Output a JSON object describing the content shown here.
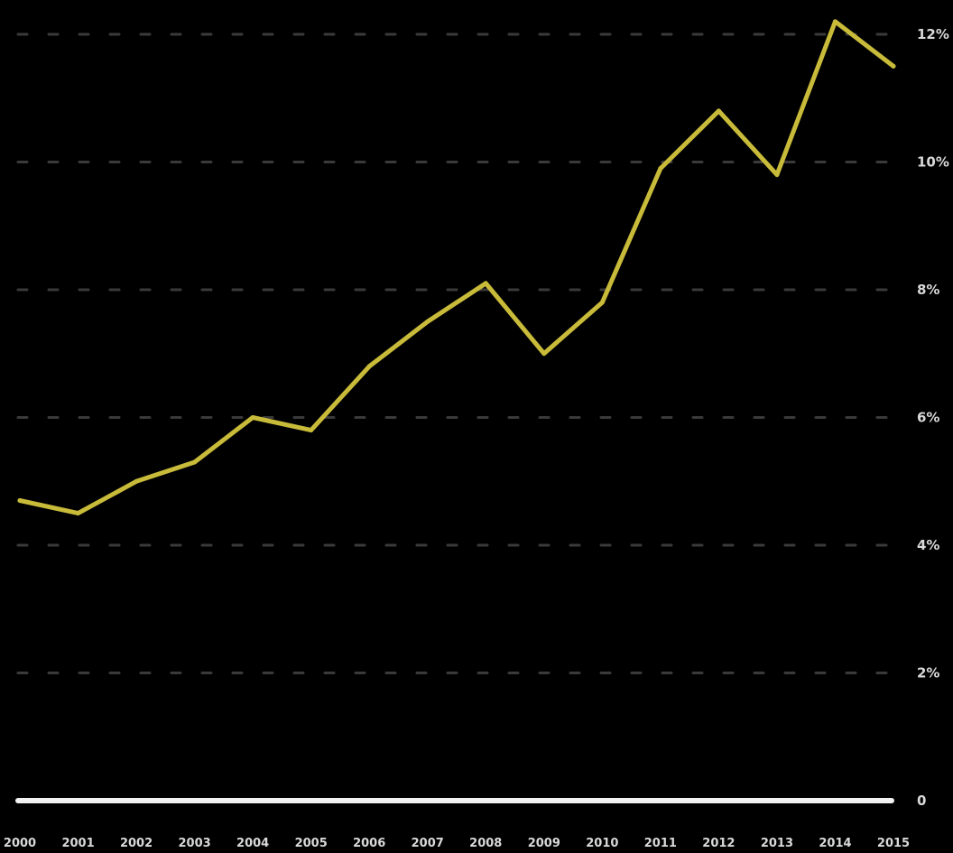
{
  "chart_data": {
    "type": "line",
    "title": "",
    "xlabel": "",
    "ylabel": "",
    "ylim": [
      0,
      12
    ],
    "y_ticks": [
      0,
      2,
      4,
      6,
      8,
      10,
      12
    ],
    "y_tick_labels": [
      "0",
      "2%",
      "4%",
      "6%",
      "8%",
      "10%",
      "12%"
    ],
    "grid": true,
    "legend": "none",
    "categories": [
      "2000",
      "2001",
      "2002",
      "2003",
      "2004",
      "2005",
      "2006",
      "2007",
      "2008",
      "2009",
      "2010",
      "2011",
      "2012",
      "2013",
      "2014",
      "2015"
    ],
    "series": [
      {
        "color": "#c9bb3a",
        "values": [
          4.7,
          4.5,
          5.0,
          5.3,
          6.0,
          5.8,
          6.8,
          7.5,
          8.1,
          7.0,
          7.8,
          9.9,
          10.8,
          9.8,
          12.2,
          11.5
        ]
      }
    ],
    "colors": {
      "background": "#000000",
      "grid": "#3a3a3a",
      "baseline": "#f2f2f2",
      "ticks": "#d9d9d9"
    }
  }
}
